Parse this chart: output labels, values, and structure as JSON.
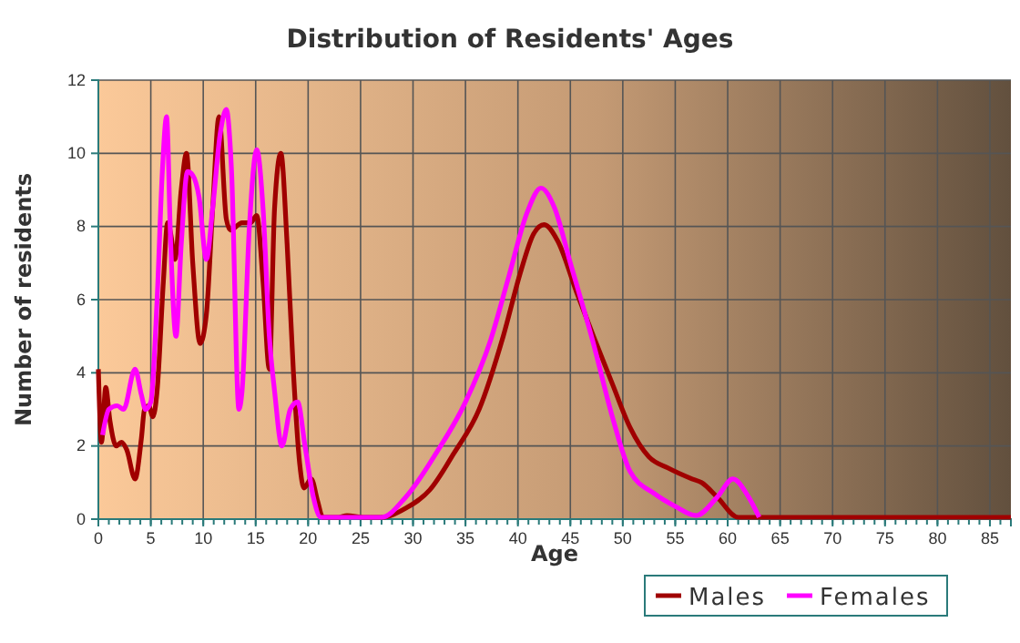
{
  "chart_data": {
    "type": "line",
    "title": "Distribution of Residents' Ages",
    "xlabel": "Age",
    "ylabel": "Number of residents",
    "xlim": [
      0,
      87
    ],
    "ylim": [
      0,
      12
    ],
    "xticks": [
      0,
      5,
      10,
      15,
      20,
      25,
      30,
      35,
      40,
      45,
      50,
      55,
      60,
      65,
      70,
      75,
      80,
      85
    ],
    "yticks": [
      0,
      2,
      4,
      6,
      8,
      10,
      12
    ],
    "grid": true,
    "legend": "bottom right",
    "line_style": "solid",
    "marker": "none",
    "series": [
      {
        "name": "Males",
        "color": "#a00000",
        "x": [
          0,
          0.3,
          0.7,
          1.1,
          1.7,
          2.2,
          2.7,
          3.5,
          4.1,
          4.4,
          4.8,
          5.2,
          5.6,
          6.2,
          6.6,
          6.9,
          7.3,
          7.9,
          8.4,
          9,
          9.7,
          10.3,
          10.9,
          11.5,
          12.2,
          12.6,
          13.7,
          14.5,
          15.1,
          15.7,
          16.3,
          16.8,
          17.4,
          18,
          18.6,
          19.2,
          19.6,
          20.3,
          20.9,
          21.4,
          22.9,
          23.7,
          25.3,
          27,
          29.3,
          31.6,
          33.9,
          36.3,
          38.6,
          40.3,
          41.5,
          42.5,
          43.8,
          45.6,
          47.2,
          49,
          50.7,
          52.5,
          54.3,
          56.6,
          57.5,
          59,
          61,
          65,
          70,
          75,
          80,
          87
        ],
        "values": [
          4.1,
          2.1,
          3.6,
          2.7,
          2,
          2.1,
          1.9,
          1.1,
          2.2,
          3,
          3.1,
          2.8,
          3.5,
          6.5,
          8.1,
          7.8,
          7.1,
          9,
          10,
          7,
          4.8,
          5.6,
          8.5,
          11,
          8.2,
          7.9,
          8.1,
          8.1,
          8.3,
          6.5,
          4.1,
          8.5,
          10,
          7.5,
          4,
          1.5,
          0.85,
          1.1,
          0.5,
          0.05,
          0.05,
          0.1,
          0.05,
          0.05,
          0.3,
          0.8,
          1.8,
          3,
          5,
          6.8,
          7.8,
          8.05,
          7.6,
          6.2,
          5,
          3.7,
          2.5,
          1.7,
          1.4,
          1.1,
          1,
          0.6,
          0.05,
          0.05,
          0.05,
          0.05,
          0.05,
          0.05
        ]
      },
      {
        "name": "Females",
        "color": "#ff00ff",
        "x": [
          0.4,
          1,
          1.8,
          2.4,
          3.5,
          4.1,
          4.5,
          5,
          5.6,
          6.1,
          6.5,
          6.9,
          7.4,
          7.9,
          8.5,
          9,
          9.6,
          10.3,
          10.9,
          11.6,
          12.2,
          12.7,
          13.4,
          13.7,
          14.4,
          15.1,
          15.7,
          16.3,
          16.8,
          17.5,
          18.3,
          19,
          19.7,
          20.5,
          21.2,
          23,
          27,
          29.3,
          32.2,
          35,
          37.4,
          39.1,
          40.9,
          42.2,
          43.5,
          45,
          47.2,
          49,
          50.7,
          53,
          55,
          57,
          59,
          60.5,
          62,
          63
        ],
        "values": [
          2.3,
          3,
          3.1,
          3,
          4.1,
          3.4,
          3,
          3.2,
          6,
          9.5,
          11,
          7.5,
          5,
          7.5,
          9.5,
          9.4,
          8.8,
          7.1,
          8.5,
          10.5,
          11.2,
          9.5,
          3,
          3.5,
          8,
          10.1,
          8.5,
          5,
          3.5,
          2,
          3,
          3.2,
          2,
          0.6,
          0.05,
          0.05,
          0.05,
          0.6,
          1.8,
          3.2,
          4.9,
          6.6,
          8.4,
          9.05,
          8.5,
          7,
          4.8,
          2.8,
          1.3,
          0.7,
          0.35,
          0.1,
          0.6,
          1.1,
          0.6,
          0.05
        ]
      }
    ]
  }
}
